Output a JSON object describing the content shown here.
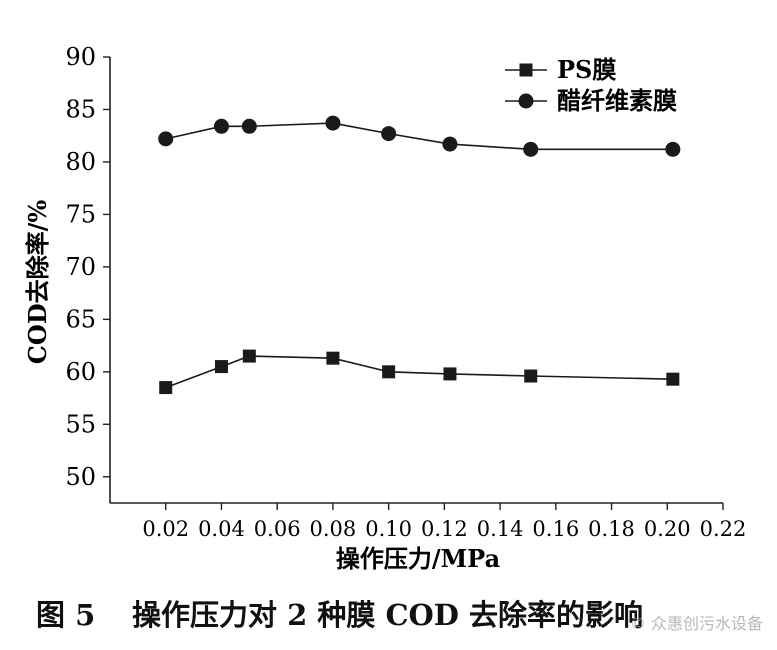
{
  "chart_data": {
    "type": "line",
    "xlabel": "操作压力/MPa",
    "ylabel": "COD去除率/%",
    "xlim": [
      0,
      0.22
    ],
    "ylim": [
      47.5,
      90
    ],
    "xticks": [
      0.02,
      0.04,
      0.06,
      0.08,
      0.1,
      0.12,
      0.14,
      0.16,
      0.18,
      0.2,
      0.22
    ],
    "xtick_labels": [
      "0.02",
      "0.04",
      "0.06",
      "0.08",
      "0.10",
      "0.12",
      "0.14",
      "0.16",
      "0.18",
      "0.20",
      "0.22"
    ],
    "yticks": [
      50,
      55,
      60,
      65,
      70,
      75,
      80,
      85,
      90
    ],
    "ytick_labels": [
      "50",
      "55",
      "60",
      "65",
      "70",
      "75",
      "80",
      "85",
      "90"
    ],
    "legend_position": "top-right",
    "grid": false,
    "series": [
      {
        "name": "PS膜",
        "marker": "square",
        "color": "#1a1a1a",
        "x": [
          0.02,
          0.04,
          0.05,
          0.08,
          0.1,
          0.122,
          0.151,
          0.202
        ],
        "y": [
          58.5,
          60.5,
          61.5,
          61.3,
          60.0,
          59.8,
          59.6,
          59.3
        ]
      },
      {
        "name": "醋纤维素膜",
        "marker": "circle",
        "color": "#1a1a1a",
        "x": [
          0.02,
          0.04,
          0.05,
          0.08,
          0.1,
          0.122,
          0.151,
          0.202
        ],
        "y": [
          82.2,
          83.4,
          83.4,
          83.7,
          82.7,
          81.7,
          81.2,
          81.2
        ]
      }
    ]
  },
  "caption": {
    "figure_number": "图 5",
    "text": "操作压力对 2 种膜 COD 去除率的影响"
  },
  "watermark": "© 众惠创污水设备"
}
